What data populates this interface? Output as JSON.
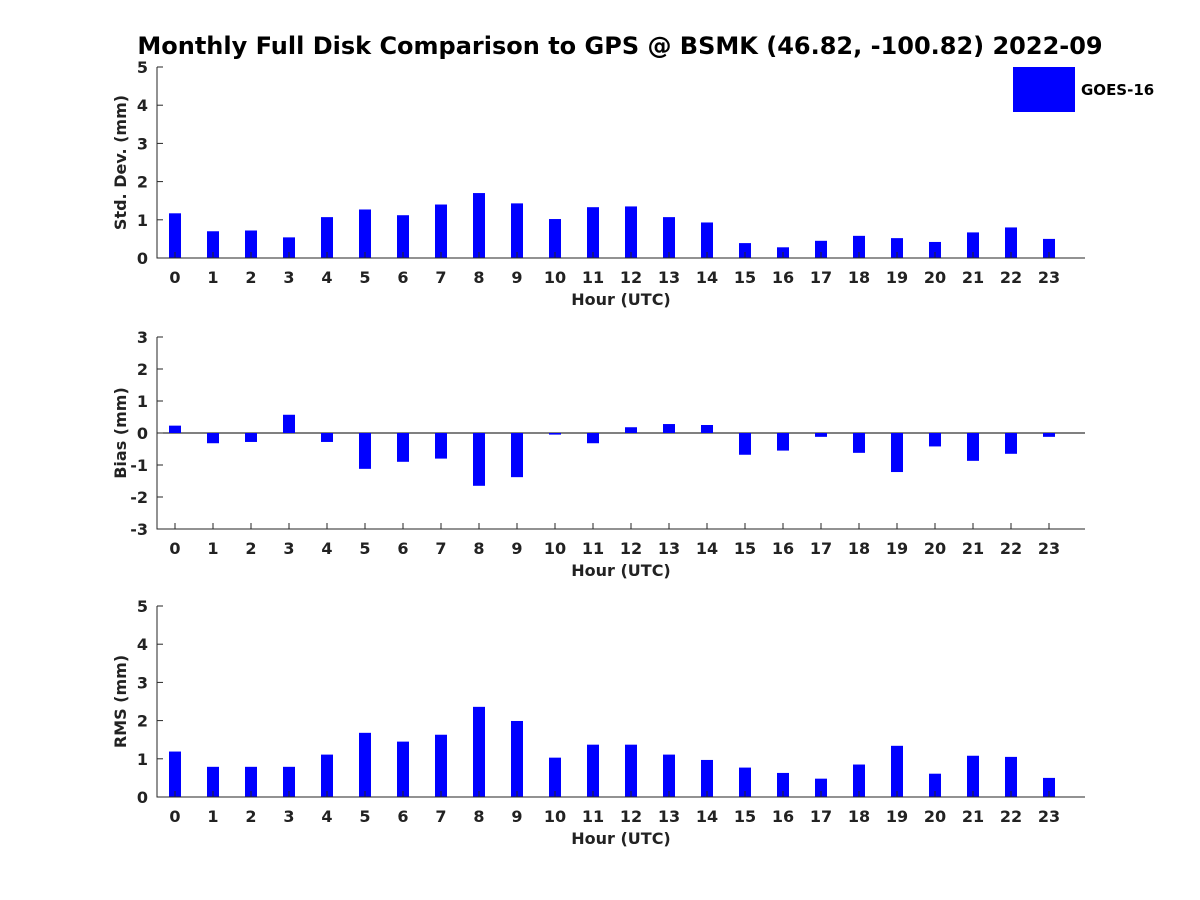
{
  "colors": {
    "bar": "#0000ff",
    "axis": "#262626",
    "text": "#222222"
  },
  "chart_data": {
    "title": "Monthly Full Disk Comparison to GPS @ BSMK (46.82, -100.82) 2022-09",
    "legend": {
      "label": "GOES-16",
      "placement": "top-right",
      "color": "#0000ff"
    },
    "panels": [
      {
        "type": "bar",
        "ylabel": "Std. Dev. (mm)",
        "xlabel": "Hour (UTC)",
        "ylim": [
          0,
          5
        ],
        "yticks": [
          0,
          1,
          2,
          3,
          4,
          5
        ],
        "categories": [
          "0",
          "1",
          "2",
          "3",
          "4",
          "5",
          "6",
          "7",
          "8",
          "9",
          "10",
          "11",
          "12",
          "13",
          "14",
          "15",
          "16",
          "17",
          "18",
          "19",
          "20",
          "21",
          "22",
          "23"
        ],
        "series": [
          {
            "name": "GOES-16",
            "values": [
              1.17,
              0.7,
              0.72,
              0.54,
              1.07,
              1.27,
              1.12,
              1.4,
              1.7,
              1.43,
              1.02,
              1.33,
              1.35,
              1.07,
              0.93,
              0.39,
              0.28,
              0.45,
              0.58,
              0.52,
              0.42,
              0.67,
              0.8,
              0.5
            ]
          }
        ]
      },
      {
        "type": "bar",
        "ylabel": "Bias (mm)",
        "xlabel": "Hour (UTC)",
        "ylim": [
          -3,
          3
        ],
        "yticks": [
          -3,
          -2,
          -1,
          0,
          1,
          2,
          3
        ],
        "categories": [
          "0",
          "1",
          "2",
          "3",
          "4",
          "5",
          "6",
          "7",
          "8",
          "9",
          "10",
          "11",
          "12",
          "13",
          "14",
          "15",
          "16",
          "17",
          "18",
          "19",
          "20",
          "21",
          "22",
          "23"
        ],
        "series": [
          {
            "name": "GOES-16",
            "values": [
              0.23,
              -0.32,
              -0.28,
              0.57,
              -0.28,
              -1.12,
              -0.9,
              -0.8,
              -1.65,
              -1.38,
              -0.05,
              -0.32,
              0.18,
              0.28,
              0.25,
              -0.68,
              -0.55,
              -0.12,
              -0.62,
              -1.22,
              -0.42,
              -0.87,
              -0.65,
              -0.12
            ]
          }
        ]
      },
      {
        "type": "bar",
        "ylabel": "RMS (mm)",
        "xlabel": "Hour (UTC)",
        "ylim": [
          0,
          5
        ],
        "yticks": [
          0,
          1,
          2,
          3,
          4,
          5
        ],
        "categories": [
          "0",
          "1",
          "2",
          "3",
          "4",
          "5",
          "6",
          "7",
          "8",
          "9",
          "10",
          "11",
          "12",
          "13",
          "14",
          "15",
          "16",
          "17",
          "18",
          "19",
          "20",
          "21",
          "22",
          "23"
        ],
        "series": [
          {
            "name": "GOES-16",
            "values": [
              1.19,
              0.79,
              0.79,
              0.79,
              1.11,
              1.68,
              1.45,
              1.63,
              2.36,
              1.99,
              1.03,
              1.37,
              1.37,
              1.11,
              0.97,
              0.77,
              0.63,
              0.48,
              0.85,
              1.34,
              0.61,
              1.08,
              1.05,
              0.5
            ]
          }
        ]
      }
    ]
  }
}
